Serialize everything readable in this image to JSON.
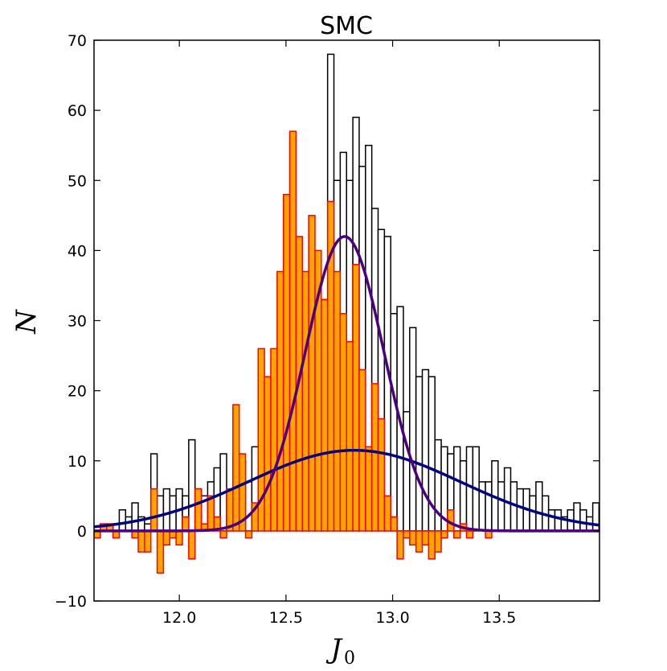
{
  "chart_data": {
    "type": "bar",
    "title": "SMC",
    "xlabel": "J",
    "xlabel_subscript": "0",
    "ylabel": "N",
    "xlim": [
      11.6,
      13.97
    ],
    "ylim": [
      -10,
      70
    ],
    "bin_width": 0.0296,
    "xticks": [
      "12.0",
      "12.5",
      "13.0",
      "13.5"
    ],
    "xtick_values": [
      12.0,
      12.5,
      13.0,
      13.5
    ],
    "yticks": [
      "−10",
      "0",
      "10",
      "20",
      "30",
      "40",
      "50",
      "60",
      "70"
    ],
    "ytick_values": [
      -10,
      0,
      10,
      20,
      30,
      40,
      50,
      60,
      70
    ],
    "grid": false,
    "colors": {
      "total_outline": "#000000",
      "residual_fill": "#FFA500",
      "residual_edge": "#FF0000",
      "broad_fill": "#FFFFFF",
      "broad_edge": "#3333FF",
      "narrow_gaussian": "#4B0082",
      "broad_gaussian": "#000080"
    },
    "series": [
      {
        "kind": "histogram-outline",
        "bin_start": 11.6,
        "values": [
          0,
          1,
          1,
          1,
          3,
          2,
          4,
          2,
          1,
          11,
          5,
          6,
          5,
          6,
          5,
          13,
          6,
          5,
          7,
          9,
          11,
          5,
          11,
          10,
          7,
          12,
          4,
          5,
          11,
          12,
          9,
          15,
          20,
          32,
          19,
          32,
          33,
          68,
          50,
          54,
          50,
          59,
          52,
          55,
          46,
          43,
          42,
          31,
          32,
          17,
          29,
          22,
          23,
          22,
          13,
          12,
          11,
          12,
          10,
          12,
          12,
          7,
          7,
          10,
          7,
          9,
          7,
          6,
          6,
          5,
          7,
          5,
          3,
          3,
          2,
          3,
          4,
          3,
          2,
          4,
          4
        ]
      },
      {
        "kind": "histogram-residual",
        "bin_start": 11.6,
        "values": [
          -1,
          1,
          1,
          -1,
          0,
          0,
          -1,
          -3,
          -3,
          6,
          -6,
          -2,
          -1,
          -2,
          2,
          -4,
          6,
          1,
          5,
          2,
          -1,
          6,
          18,
          11,
          -1,
          4,
          26,
          22,
          26,
          37,
          48,
          57,
          42,
          37,
          45,
          40,
          33,
          47,
          37,
          31,
          27,
          38,
          23,
          12,
          21,
          16,
          5,
          2,
          -4,
          -1,
          -2,
          -3,
          -2,
          -4,
          -3,
          -1,
          3,
          -1,
          1,
          -1,
          0,
          0,
          -1,
          0,
          0,
          0,
          0,
          0,
          0,
          0,
          0,
          0,
          0,
          0,
          0,
          0,
          0,
          0,
          0,
          0
        ]
      },
      {
        "kind": "gaussian",
        "name": "narrow",
        "amplitude": 42,
        "mean": 12.775,
        "sigma": 0.185
      },
      {
        "kind": "gaussian",
        "name": "broad",
        "amplitude": 11.5,
        "mean": 12.82,
        "sigma": 0.5
      }
    ]
  }
}
